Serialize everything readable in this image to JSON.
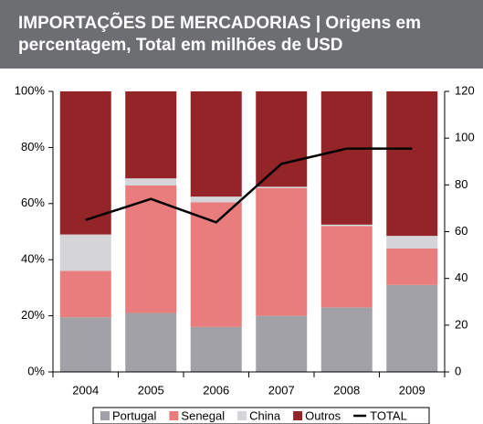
{
  "chart_data": {
    "type": "stacked-bar-line",
    "title": "IMPORTAÇÕES DE MERCADORIAS | Origens em percentagem, Total em milhões de USD",
    "categories": [
      "2004",
      "2005",
      "2006",
      "2007",
      "2008",
      "2009"
    ],
    "series": [
      {
        "name": "Portugal",
        "color": "#a1a1a7",
        "values": [
          19.5,
          21,
          16,
          20,
          23,
          31
        ]
      },
      {
        "name": "Senegal",
        "color": "#e97d7d",
        "values": [
          16.5,
          45.5,
          44.5,
          45.5,
          29,
          13
        ]
      },
      {
        "name": "China",
        "color": "#d4d4d9",
        "values": [
          13,
          2.5,
          2,
          0.5,
          0.5,
          4.5
        ]
      },
      {
        "name": "Outros",
        "color": "#932427",
        "values": [
          51,
          31,
          37.5,
          34,
          47.5,
          51.5
        ]
      },
      {
        "name": "TOTAL",
        "color": "#000000",
        "type": "line",
        "axis": "y2",
        "values": [
          65,
          74,
          64,
          89,
          95.5,
          95.5
        ]
      }
    ],
    "ylim": [
      0,
      100
    ],
    "yticks": [
      {
        "value": 0,
        "label": "0%"
      },
      {
        "value": 20,
        "label": "20%"
      },
      {
        "value": 40,
        "label": "40%"
      },
      {
        "value": 60,
        "label": "60%"
      },
      {
        "value": 80,
        "label": "80%"
      },
      {
        "value": 100,
        "label": "100%"
      }
    ],
    "y2lim": [
      0,
      120
    ],
    "y2ticks": [
      0,
      20,
      40,
      60,
      80,
      100,
      120
    ],
    "legend": "bottom"
  }
}
